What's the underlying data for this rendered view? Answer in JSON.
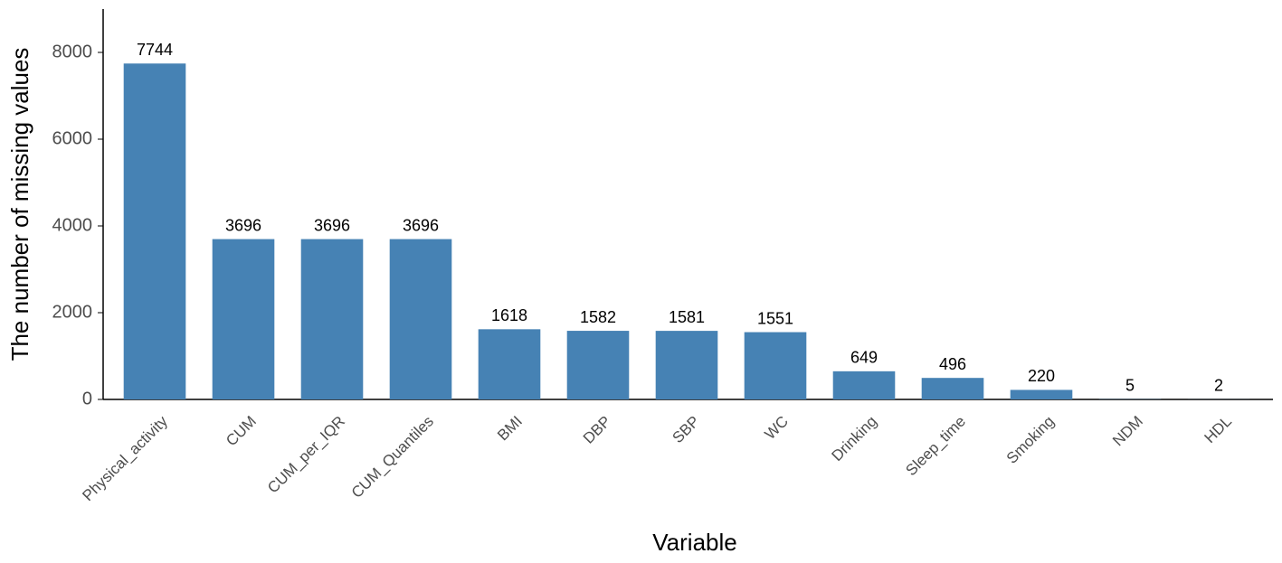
{
  "chart_data": {
    "type": "bar",
    "x_label": "Variable",
    "y_label": "The number of missing values",
    "categories": [
      "Physical_activity",
      "CUM",
      "CUM_per_IQR",
      "CUM_Quantiles",
      "BMI",
      "DBP",
      "SBP",
      "WC",
      "Drinking",
      "Sleep_time",
      "Smoking",
      "NDM",
      "HDL"
    ],
    "values": [
      7744,
      3696,
      3696,
      3696,
      1618,
      1582,
      1581,
      1551,
      649,
      496,
      220,
      5,
      2
    ],
    "color": "#4682b4",
    "ylim": [
      0,
      9000
    ],
    "yticks": [
      0,
      2000,
      4000,
      6000,
      8000
    ],
    "grid": false
  }
}
